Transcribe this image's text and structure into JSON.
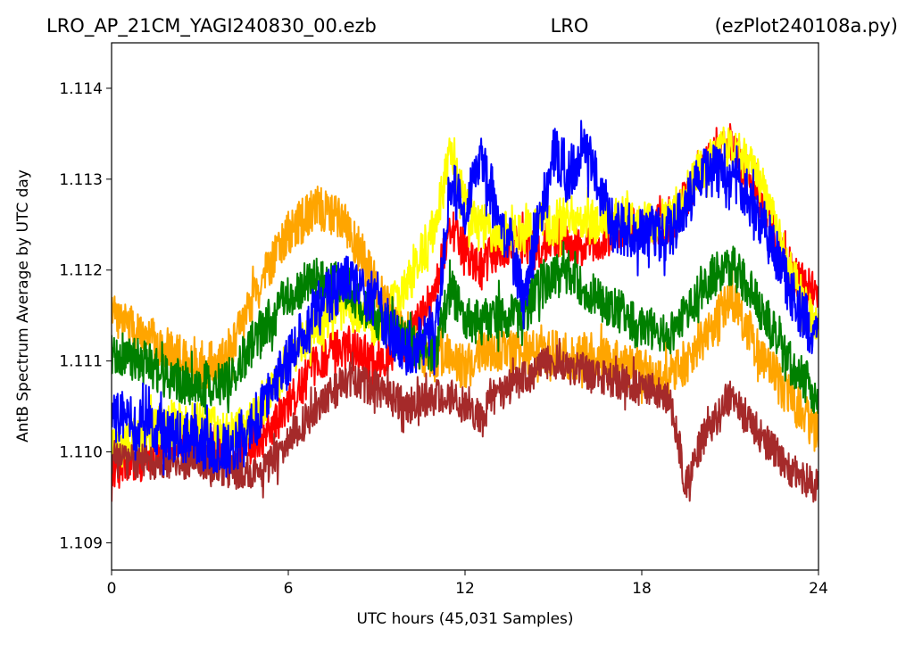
{
  "header": {
    "left": "LRO_AP_21CM_YAGI240830_00.ezb",
    "center": "LRO",
    "right": "(ezPlot240108a.py)"
  },
  "chart_data": {
    "type": "line",
    "xlabel": "UTC hours  (45,031 Samples)",
    "ylabel": "AntB Spectrum Average by UTC day",
    "xlim": [
      0,
      24
    ],
    "ylim": [
      1.1087,
      1.1145
    ],
    "xticks": [
      0,
      6,
      12,
      18,
      24
    ],
    "xtick_labels": [
      "0",
      "6",
      "12",
      "18",
      "24"
    ],
    "yticks": [
      1.109,
      1.11,
      1.111,
      1.112,
      1.113,
      1.114
    ],
    "ytick_labels": [
      "1.109",
      "1.110",
      "1.111",
      "1.112",
      "1.113",
      "1.114"
    ],
    "grid": false,
    "legend": "none",
    "x": [
      0,
      1,
      2,
      3,
      4,
      5,
      6,
      7,
      8,
      9,
      10,
      11,
      11.5,
      12,
      12.5,
      13,
      14,
      14.5,
      15,
      15.5,
      16,
      17,
      18,
      19,
      19.5,
      20,
      21,
      22,
      23,
      24
    ],
    "series": [
      {
        "color": "#ff0000",
        "noise": 0.00045,
        "values": [
          1.1098,
          1.1099,
          1.1101,
          1.1102,
          1.11,
          1.1101,
          1.1105,
          1.111,
          1.1112,
          1.111,
          1.1112,
          1.1118,
          1.1125,
          1.1122,
          1.112,
          1.1122,
          1.1123,
          1.1122,
          1.1124,
          1.1123,
          1.1122,
          1.1124,
          1.1125,
          1.1125,
          1.1128,
          1.1131,
          1.1134,
          1.1128,
          1.112,
          1.1117
        ]
      },
      {
        "color": "#ffff00",
        "noise": 0.0005,
        "values": [
          1.1101,
          1.1102,
          1.1103,
          1.1103,
          1.1102,
          1.1104,
          1.111,
          1.1114,
          1.1116,
          1.1114,
          1.1118,
          1.1125,
          1.1133,
          1.1127,
          1.1125,
          1.1124,
          1.1124,
          1.1125,
          1.1125,
          1.1126,
          1.1125,
          1.1126,
          1.1125,
          1.1126,
          1.1128,
          1.1131,
          1.1134,
          1.113,
          1.112,
          1.1113
        ]
      },
      {
        "color": "#ffa500",
        "noise": 0.0005,
        "values": [
          1.1115,
          1.1113,
          1.1111,
          1.1109,
          1.1111,
          1.1118,
          1.1124,
          1.1127,
          1.1125,
          1.1118,
          1.1112,
          1.111,
          1.1111,
          1.1109,
          1.1111,
          1.1111,
          1.1111,
          1.1111,
          1.1111,
          1.111,
          1.1111,
          1.111,
          1.1109,
          1.1108,
          1.111,
          1.1112,
          1.1117,
          1.1111,
          1.1106,
          1.1102
        ]
      },
      {
        "color": "#008000",
        "noise": 0.0005,
        "values": [
          1.1111,
          1.111,
          1.1108,
          1.1107,
          1.1108,
          1.1113,
          1.1117,
          1.1119,
          1.1118,
          1.1115,
          1.1112,
          1.1111,
          1.1118,
          1.1115,
          1.1114,
          1.1115,
          1.1115,
          1.1118,
          1.1119,
          1.112,
          1.1118,
          1.1116,
          1.1114,
          1.1113,
          1.1115,
          1.1118,
          1.1121,
          1.1116,
          1.111,
          1.1106
        ]
      },
      {
        "color": "#a52a2a",
        "noise": 0.0004,
        "values": [
          1.1099,
          1.1099,
          1.1099,
          1.1099,
          1.1098,
          1.1097,
          1.1101,
          1.1105,
          1.1108,
          1.1107,
          1.1105,
          1.1106,
          1.1106,
          1.1105,
          1.1104,
          1.1106,
          1.1108,
          1.1109,
          1.111,
          1.1109,
          1.1109,
          1.1108,
          1.1107,
          1.1106,
          1.1096,
          1.1101,
          1.1106,
          1.1102,
          1.1098,
          1.1096
        ]
      },
      {
        "color": "#0000ff",
        "noise": 0.0006,
        "values": [
          1.1104,
          1.1103,
          1.1102,
          1.1101,
          1.11,
          1.1104,
          1.111,
          1.1116,
          1.1119,
          1.1116,
          1.1111,
          1.1113,
          1.113,
          1.1126,
          1.1132,
          1.1128,
          1.1117,
          1.1125,
          1.1133,
          1.113,
          1.1134,
          1.1125,
          1.1124,
          1.1124,
          1.1127,
          1.1131,
          1.1131,
          1.1126,
          1.1118,
          1.1112
        ]
      }
    ]
  }
}
